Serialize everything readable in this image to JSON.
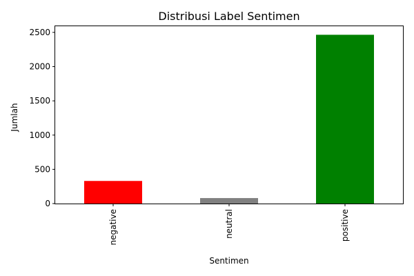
{
  "chart_data": {
    "type": "bar",
    "title": "Distribusi Label Sentimen",
    "xlabel": "Sentimen",
    "ylabel": "Jumlah",
    "categories": [
      "negative",
      "neutral",
      "positive"
    ],
    "values": [
      330,
      80,
      2465
    ],
    "colors": [
      "#ff0000",
      "#808080",
      "#008000"
    ],
    "ylim": [
      0,
      2590
    ],
    "yticks": [
      0,
      500,
      1000,
      1500,
      2000,
      2500
    ],
    "grid": false,
    "legend": "none"
  }
}
